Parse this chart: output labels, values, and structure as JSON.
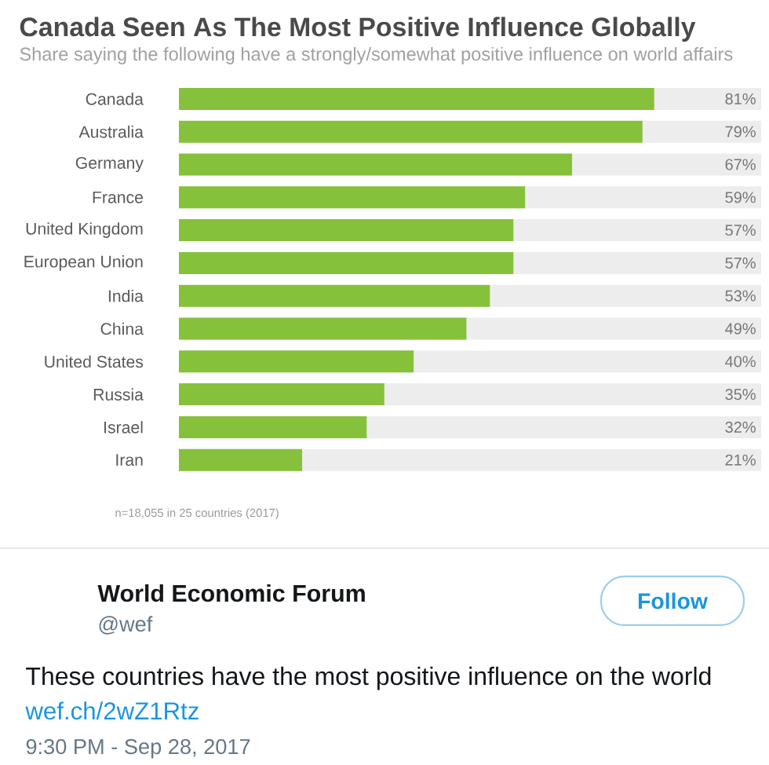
{
  "chart_data": {
    "type": "bar",
    "orientation": "horizontal",
    "title": "Canada Seen As The Most Positive Influence Globally",
    "subtitle": "Share saying the following have a strongly/somewhat positive influence on world affairs",
    "categories": [
      "Canada",
      "Australia",
      "Germany",
      "France",
      "United Kingdom",
      "European Union",
      "India",
      "China",
      "United States",
      "Russia",
      "Israel",
      "Iran"
    ],
    "values": [
      81,
      79,
      67,
      59,
      57,
      57,
      53,
      49,
      40,
      35,
      32,
      21
    ],
    "value_labels": [
      "81%",
      "79%",
      "67%",
      "59%",
      "57%",
      "57%",
      "53%",
      "49%",
      "40%",
      "35%",
      "32%",
      "21%"
    ],
    "color": "#86c13b",
    "annotations": [
      "n=18,055 in 25 countries (2017)",
      "World Economic Forum",
      "@wef",
      "Follow",
      "These countries have the most positive influence on the world",
      "wef.ch/2wZ1Rtz",
      "9:30 PM - Sep 28, 2017"
    ]
  }
}
